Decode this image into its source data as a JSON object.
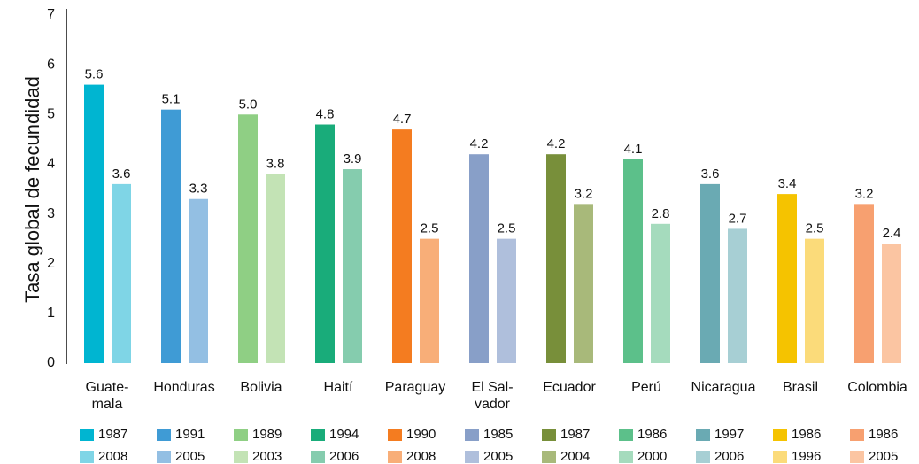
{
  "chart_data": {
    "type": "bar",
    "ylabel": "Tasa global de fecundidad",
    "categories": [
      "Guate-\nmala",
      "Honduras",
      "Bolivia",
      "Haití",
      "Paraguay",
      "El Sal-\nvador",
      "Ecuador",
      "Perú",
      "Nicaragua",
      "Brasil",
      "Colombia"
    ],
    "years": [
      [
        "1987",
        "2008"
      ],
      [
        "1991",
        "2005"
      ],
      [
        "1989",
        "2003"
      ],
      [
        "1994",
        "2006"
      ],
      [
        "1990",
        "2008"
      ],
      [
        "1985",
        "2005"
      ],
      [
        "1987",
        "2004"
      ],
      [
        "1986",
        "2000"
      ],
      [
        "1997",
        "2006"
      ],
      [
        "1986",
        "1996"
      ],
      [
        "1986",
        "2005"
      ]
    ],
    "values": [
      [
        5.6,
        3.6
      ],
      [
        5.1,
        3.3
      ],
      [
        5.0,
        3.8
      ],
      [
        4.8,
        3.9
      ],
      [
        4.7,
        2.5
      ],
      [
        4.2,
        2.5
      ],
      [
        4.2,
        3.2
      ],
      [
        4.1,
        2.8
      ],
      [
        3.6,
        2.7
      ],
      [
        3.4,
        2.5
      ],
      [
        3.2,
        2.4
      ]
    ],
    "value_labels": [
      [
        "5.6",
        "3.6"
      ],
      [
        "5.1",
        "3.3"
      ],
      [
        "5.0",
        "3.8"
      ],
      [
        "4.8",
        "3.9"
      ],
      [
        "4.7",
        "2.5"
      ],
      [
        "4.2",
        "2.5"
      ],
      [
        "4.2",
        "3.2"
      ],
      [
        "4.1",
        "2.8"
      ],
      [
        "3.6",
        "2.7"
      ],
      [
        "3.4",
        "2.5"
      ],
      [
        "3.2",
        "2.4"
      ]
    ],
    "colors": [
      [
        "#00b5d1",
        "#7fd5e6"
      ],
      [
        "#3f9bd5",
        "#93bfe3"
      ],
      [
        "#8fcf84",
        "#c3e3b5"
      ],
      [
        "#19ac7a",
        "#85ccae"
      ],
      [
        "#f47c20",
        "#f8ae78"
      ],
      [
        "#889fc8",
        "#afbfdc"
      ],
      [
        "#788f3a",
        "#a8b97a"
      ],
      [
        "#5cc08a",
        "#a5dbbd"
      ],
      [
        "#6aaab3",
        "#a7cfd4"
      ],
      [
        "#f5c300",
        "#fbdb7a"
      ],
      [
        "#f7a070",
        "#fbc5a2"
      ]
    ],
    "ylim": [
      0,
      7
    ],
    "yticks": [
      0,
      1,
      2,
      3,
      4,
      5,
      6,
      7
    ],
    "grid": false
  }
}
